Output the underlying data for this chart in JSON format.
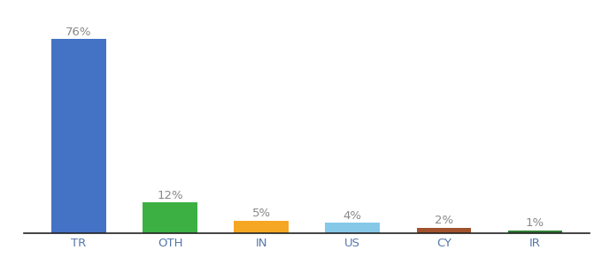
{
  "categories": [
    "TR",
    "OTH",
    "IN",
    "US",
    "CY",
    "IR"
  ],
  "values": [
    76,
    12,
    5,
    4,
    2,
    1
  ],
  "bar_colors": [
    "#4472C4",
    "#3CB043",
    "#F5A623",
    "#85C8E8",
    "#A0522D",
    "#2E7D32"
  ],
  "label_color": "#888888",
  "background_color": "#ffffff",
  "ylim": [
    0,
    83
  ],
  "bar_width": 0.6,
  "label_fontsize": 9.5,
  "tick_fontsize": 9.5,
  "tick_color": "#5577AA"
}
